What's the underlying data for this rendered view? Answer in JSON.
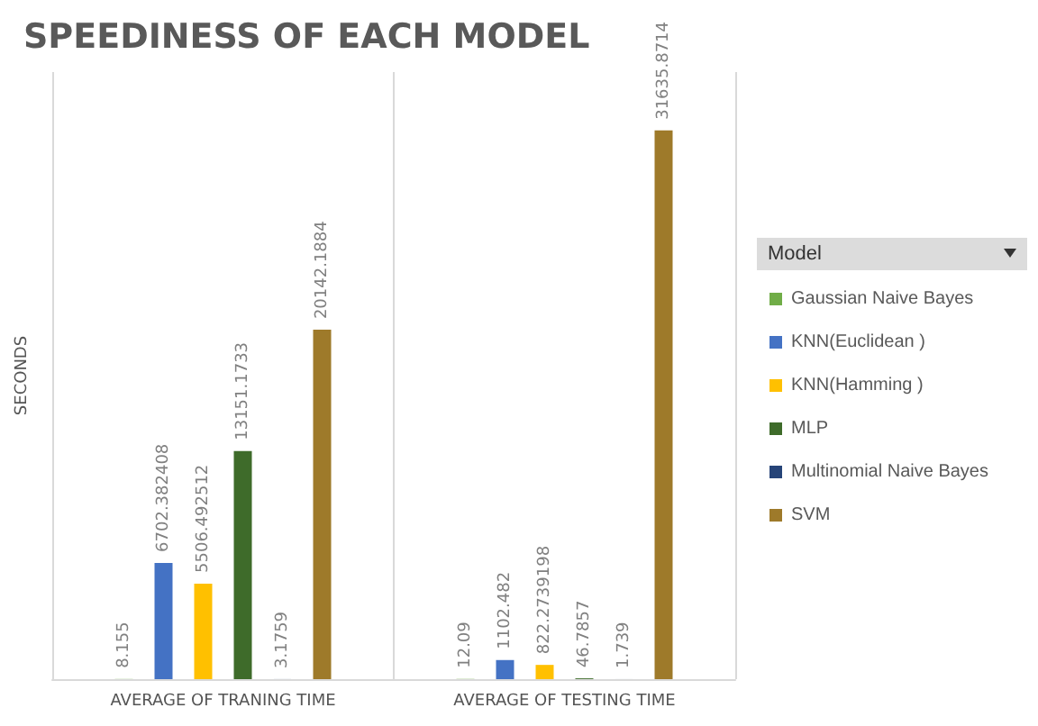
{
  "chart_data": {
    "type": "bar",
    "title": "SPEEDINESS OF EACH MODEL",
    "ylabel": "SECONDS",
    "legend_title": "Model",
    "categories": [
      "AVERAGE OF TRANING TIME",
      "AVERAGE OF TESTING TIME"
    ],
    "series": [
      {
        "name": "Gaussian Naive Bayes",
        "color": "#70ad47",
        "values": [
          8.155,
          12.09
        ]
      },
      {
        "name": "KNN(Euclidean )",
        "color": "#4472c4",
        "values": [
          6702.382408,
          1102.482
        ]
      },
      {
        "name": "KNN(Hamming )",
        "color": "#ffc000",
        "values": [
          5506.492512,
          822.2739198
        ]
      },
      {
        "name": "MLP",
        "color": "#3e6b2a",
        "values": [
          13151.1733,
          46.7857
        ]
      },
      {
        "name": "Multinomial Naive Bayes",
        "color": "#264478",
        "values": [
          3.1759,
          1.739
        ]
      },
      {
        "name": "SVM",
        "color": "#9e7a2a",
        "values": [
          20142.1884,
          31635.8714
        ]
      }
    ],
    "data_labels": true,
    "legend": "right",
    "grid": false,
    "tick_labels": "x"
  }
}
